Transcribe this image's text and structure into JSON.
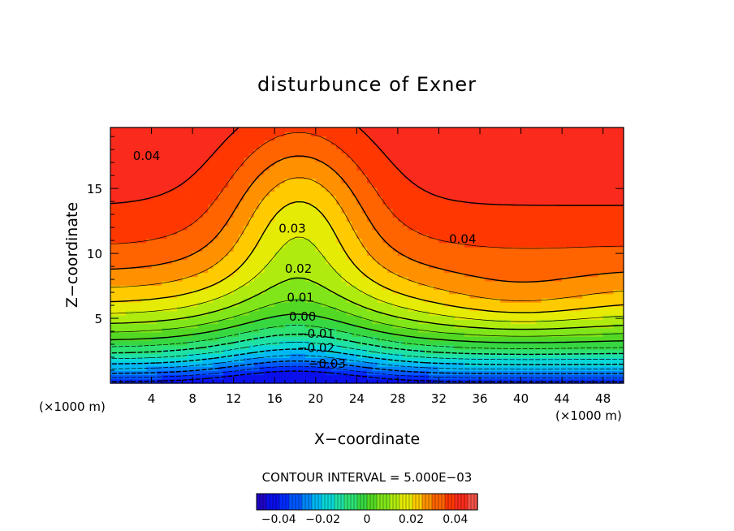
{
  "chart_data": {
    "type": "heatmap",
    "title": "disturbunce of Exner",
    "xlabel": "X−coordinate",
    "ylabel": "Z−coordinate",
    "x_unit_label": "(×1000 m)",
    "y_unit_label": "(×1000 m)",
    "xlim": [
      0,
      50
    ],
    "ylim": [
      0,
      19.7
    ],
    "x_ticks": [
      4,
      8,
      12,
      16,
      20,
      24,
      28,
      32,
      36,
      40,
      44,
      48
    ],
    "y_ticks": [
      5,
      10,
      15
    ],
    "contour_interval_text": "CONTOUR INTERVAL = 5.000E−03",
    "contour_labels": [
      {
        "text": "0.04",
        "x": 2.2,
        "z": 17.2
      },
      {
        "text": "0.04",
        "x": 33.0,
        "z": 10.8
      },
      {
        "text": "0.03",
        "x": 16.4,
        "z": 11.6
      },
      {
        "text": "0.02",
        "x": 17.0,
        "z": 8.5
      },
      {
        "text": "0.01",
        "x": 17.2,
        "z": 6.3
      },
      {
        "text": "0.00",
        "x": 17.4,
        "z": 4.8
      },
      {
        "text": "−0.01",
        "x": 18.2,
        "z": 3.5
      },
      {
        "text": "−0.02",
        "x": 18.2,
        "z": 2.4
      },
      {
        "text": "−0.03",
        "x": 19.3,
        "z": 1.2
      }
    ],
    "colorbar": {
      "range": [
        -0.05,
        0.05
      ],
      "ticks": [
        -0.04,
        -0.02,
        0,
        0.02,
        0.04
      ],
      "tick_labels": [
        "−0.04",
        "−0.02",
        "0",
        "0.02",
        "0.04"
      ]
    },
    "field": {
      "description_values": "approximate Exner perturbation: min about -0.04 near x=18 at ground, max about 0.046 near z=13 on both sides",
      "min": -0.042,
      "max": 0.046
    }
  }
}
